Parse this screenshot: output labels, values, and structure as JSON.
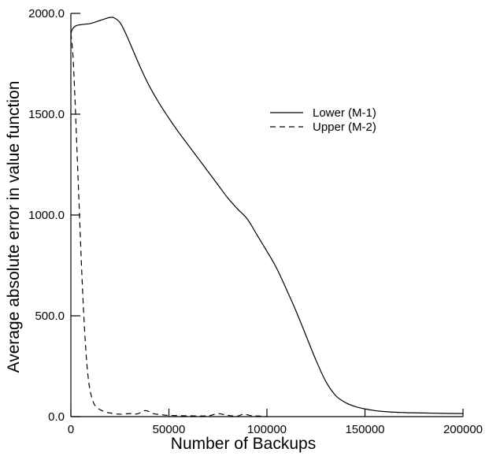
{
  "chart_data": {
    "type": "line",
    "title": "",
    "xlabel": "Number of Backups",
    "ylabel": "Average absolute error in value function",
    "xlim": [
      0,
      200000
    ],
    "ylim": [
      0,
      2000
    ],
    "grid": false,
    "legend_placement": "top-right",
    "x_ticks": [
      {
        "value": 0,
        "label": "0"
      },
      {
        "value": 50000,
        "label": "50000"
      },
      {
        "value": 100000,
        "label": "100000"
      },
      {
        "value": 150000,
        "label": "150000"
      },
      {
        "value": 200000,
        "label": "200000"
      }
    ],
    "y_ticks": [
      {
        "value": 0,
        "label": "0.0"
      },
      {
        "value": 500,
        "label": "500.0"
      },
      {
        "value": 1000,
        "label": "1000.0"
      },
      {
        "value": 1500,
        "label": "1500.0"
      },
      {
        "value": 2000,
        "label": "2000.0"
      }
    ],
    "series": [
      {
        "name": "Lower (M-1)",
        "style": "solid",
        "color": "#000000",
        "x": [
          0,
          1000,
          3000,
          6000,
          10000,
          14000,
          18000,
          20000,
          22000,
          25000,
          28000,
          32000,
          36000,
          40000,
          45000,
          50000,
          55000,
          60000,
          65000,
          70000,
          75000,
          80000,
          85000,
          90000,
          95000,
          100000,
          105000,
          110000,
          115000,
          120000,
          125000,
          130000,
          135000,
          140000,
          145000,
          150000,
          155000,
          160000,
          170000,
          180000,
          190000,
          200000
        ],
        "y": [
          1900,
          1925,
          1940,
          1945,
          1950,
          1962,
          1975,
          1980,
          1978,
          1955,
          1900,
          1810,
          1720,
          1640,
          1555,
          1480,
          1410,
          1345,
          1280,
          1215,
          1150,
          1085,
          1030,
          980,
          900,
          820,
          735,
          630,
          520,
          400,
          280,
          175,
          105,
          70,
          50,
          38,
          30,
          25,
          20,
          18,
          16,
          15
        ]
      },
      {
        "name": "Upper (M-2)",
        "style": "dashed",
        "color": "#000000",
        "x": [
          0,
          1000,
          2000,
          3000,
          4000,
          5000,
          6000,
          7000,
          8000,
          9000,
          10000,
          11000,
          12000,
          14000,
          17000,
          20000,
          25000,
          30000,
          34000,
          38000,
          42000,
          46000,
          50000,
          60000,
          70000,
          75000,
          80000,
          85000,
          88000,
          92000,
          96000,
          100000
        ],
        "y": [
          1900,
          1800,
          1600,
          1350,
          1100,
          850,
          620,
          430,
          280,
          180,
          120,
          85,
          60,
          40,
          25,
          18,
          12,
          15,
          14,
          30,
          15,
          10,
          6,
          4,
          4,
          15,
          6,
          3,
          12,
          5,
          3,
          0
        ]
      }
    ]
  }
}
